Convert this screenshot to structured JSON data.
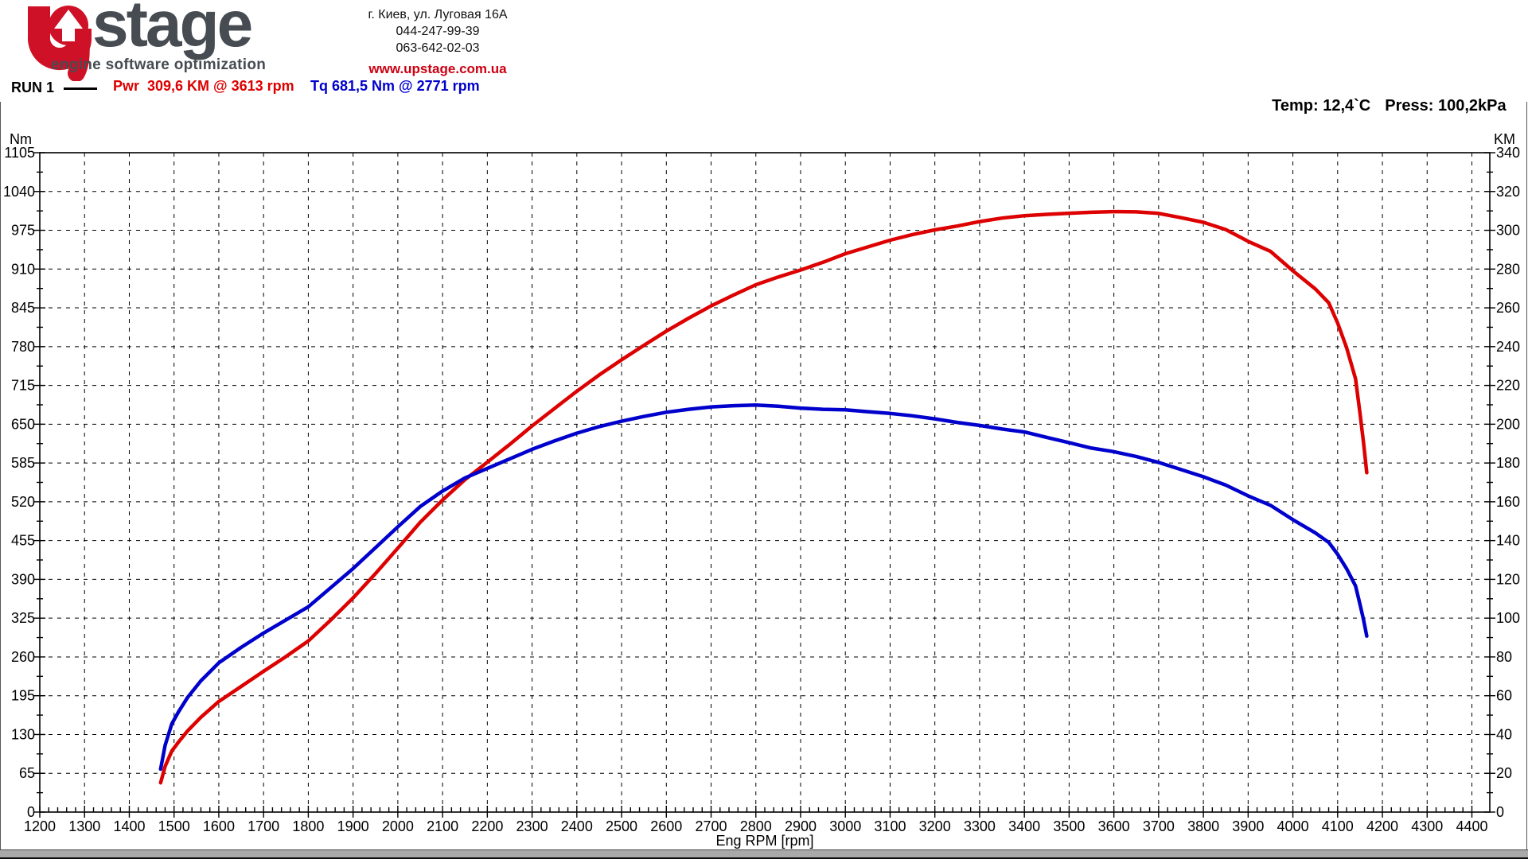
{
  "header": {
    "brand": "stage",
    "tagline": "engine software optimization",
    "brand_red": "#ce1126",
    "brand_gray": "#474c52",
    "address_lines": [
      "г. Киев, ул. Луговая 16А",
      "044-247-99-39",
      "063-642-02-03"
    ],
    "website": "www.upstage.com.ua"
  },
  "run_info": {
    "run_label": "RUN 1",
    "power_reading": "Pwr  309,6 KM @ 3613 rpm",
    "torque_reading": "Tq 681,5 Nm @ 2771 rpm",
    "temperature": "Temp: 12,4`C",
    "pressure": "Press: 100,2kPa",
    "power_color": "#dd0000",
    "torque_color": "#0000cc"
  },
  "chart_data": {
    "type": "line",
    "title": "",
    "grid": "dashed",
    "x_axis": {
      "label": "Eng RPM [rpm]",
      "min": 1200,
      "max": 4440,
      "label_max": 4400,
      "major_tick": 100,
      "minor_tick": 20
    },
    "y_left": {
      "label": "Nm",
      "min": 0,
      "max": 1105,
      "major_tick": 65
    },
    "y_right": {
      "label": "KM",
      "min": 0,
      "max": 340,
      "major_tick": 20
    },
    "series": [
      {
        "name": "Power",
        "unit": "KM",
        "axis": "right",
        "color": "#dd0000",
        "peak_annotation": "309,6 KM @ 3613 rpm",
        "points": [
          [
            1470,
            15.1
          ],
          [
            1480,
            23.6
          ],
          [
            1495,
            31.5
          ],
          [
            1510,
            36.1
          ],
          [
            1530,
            41.8
          ],
          [
            1560,
            48.9
          ],
          [
            1600,
            57
          ],
          [
            1650,
            64.8
          ],
          [
            1700,
            72.6
          ],
          [
            1750,
            80.2
          ],
          [
            1800,
            88.2
          ],
          [
            1850,
            99
          ],
          [
            1900,
            110.4
          ],
          [
            1950,
            123
          ],
          [
            2000,
            136.1
          ],
          [
            2050,
            149.4
          ],
          [
            2100,
            160.9
          ],
          [
            2150,
            171.4
          ],
          [
            2200,
            180.4
          ],
          [
            2250,
            189.6
          ],
          [
            2300,
            199.1
          ],
          [
            2350,
            208.1
          ],
          [
            2400,
            217
          ],
          [
            2450,
            225.4
          ],
          [
            2500,
            233.2
          ],
          [
            2550,
            240.7
          ],
          [
            2600,
            248
          ],
          [
            2650,
            254.7
          ],
          [
            2700,
            261
          ],
          [
            2750,
            266.6
          ],
          [
            2800,
            271.9
          ],
          [
            2850,
            275.9
          ],
          [
            2900,
            279.5
          ],
          [
            2950,
            283.5
          ],
          [
            3000,
            287.9
          ],
          [
            3050,
            291.4
          ],
          [
            3100,
            294.9
          ],
          [
            3150,
            297.8
          ],
          [
            3200,
            300.2
          ],
          [
            3250,
            302.2
          ],
          [
            3300,
            304.5
          ],
          [
            3350,
            306.3
          ],
          [
            3400,
            307.5
          ],
          [
            3450,
            308.2
          ],
          [
            3500,
            308.8
          ],
          [
            3550,
            309.3
          ],
          [
            3600,
            309.6
          ],
          [
            3613,
            309.6
          ],
          [
            3650,
            309.5
          ],
          [
            3700,
            308.7
          ],
          [
            3750,
            306.5
          ],
          [
            3800,
            304.1
          ],
          [
            3850,
            300.4
          ],
          [
            3900,
            294.3
          ],
          [
            3950,
            289.1
          ],
          [
            4000,
            279.1
          ],
          [
            4050,
            269.8
          ],
          [
            4080,
            262.6
          ],
          [
            4100,
            252.2
          ],
          [
            4120,
            239.5
          ],
          [
            4140,
            223.4
          ],
          [
            4150,
            205.6
          ],
          [
            4158,
            190.3
          ],
          [
            4165,
            175
          ]
        ]
      },
      {
        "name": "Torque",
        "unit": "Nm",
        "axis": "left",
        "color": "#0000cc",
        "peak_annotation": "681,5 Nm @ 2771 rpm",
        "points": [
          [
            1470,
            72
          ],
          [
            1480,
            112
          ],
          [
            1495,
            148
          ],
          [
            1510,
            168
          ],
          [
            1530,
            192
          ],
          [
            1560,
            220
          ],
          [
            1600,
            250
          ],
          [
            1650,
            276
          ],
          [
            1700,
            300
          ],
          [
            1750,
            322
          ],
          [
            1800,
            344
          ],
          [
            1850,
            376
          ],
          [
            1900,
            408
          ],
          [
            1950,
            443
          ],
          [
            2000,
            478
          ],
          [
            2050,
            512
          ],
          [
            2100,
            538
          ],
          [
            2150,
            560
          ],
          [
            2200,
            576
          ],
          [
            2250,
            592
          ],
          [
            2300,
            608
          ],
          [
            2350,
            622
          ],
          [
            2400,
            635
          ],
          [
            2450,
            646
          ],
          [
            2500,
            655
          ],
          [
            2550,
            663
          ],
          [
            2600,
            670
          ],
          [
            2650,
            675
          ],
          [
            2700,
            679
          ],
          [
            2750,
            681
          ],
          [
            2771,
            681.5
          ],
          [
            2800,
            682
          ],
          [
            2850,
            680
          ],
          [
            2900,
            677
          ],
          [
            2950,
            675
          ],
          [
            3000,
            674
          ],
          [
            3050,
            671
          ],
          [
            3100,
            668
          ],
          [
            3150,
            664
          ],
          [
            3200,
            659
          ],
          [
            3250,
            653
          ],
          [
            3300,
            648
          ],
          [
            3350,
            642
          ],
          [
            3400,
            637
          ],
          [
            3450,
            628
          ],
          [
            3500,
            619
          ],
          [
            3550,
            610
          ],
          [
            3600,
            604
          ],
          [
            3650,
            596
          ],
          [
            3700,
            586
          ],
          [
            3750,
            574
          ],
          [
            3800,
            562
          ],
          [
            3850,
            548
          ],
          [
            3900,
            530
          ],
          [
            3950,
            514
          ],
          [
            4000,
            490
          ],
          [
            4050,
            468
          ],
          [
            4080,
            452
          ],
          [
            4100,
            432
          ],
          [
            4120,
            408
          ],
          [
            4140,
            379
          ],
          [
            4150,
            348
          ],
          [
            4158,
            322
          ],
          [
            4165,
            295
          ]
        ]
      }
    ]
  }
}
